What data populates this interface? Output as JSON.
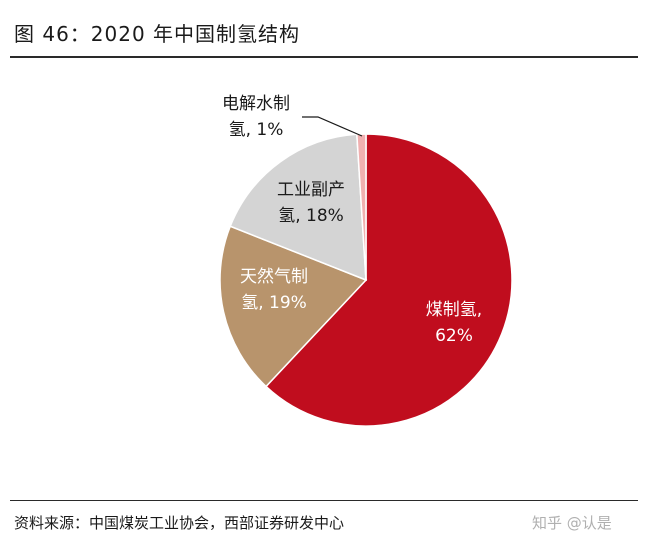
{
  "title": "图 46：2020 年中国制氢结构",
  "source": "资料来源：中国煤炭工业协会，西部证券研发中心",
  "watermark": "知乎 @认是",
  "chart_data": {
    "type": "pie",
    "title": "图 46：2020 年中国制氢结构",
    "slices": [
      {
        "name": "煤制氢",
        "value": 62,
        "label_line1": "煤制氢,",
        "label_line2": "62%",
        "color": "#c00d1e",
        "text_color": "#ffffff"
      },
      {
        "name": "天然气制氢",
        "value": 19,
        "label_line1": "天然气制",
        "label_line2": "氢, 19%",
        "color": "#b8946c",
        "text_color": "#ffffff"
      },
      {
        "name": "工业副产氢",
        "value": 18,
        "label_line1": "工业副产",
        "label_line2": "氢, 18%",
        "color": "#d4d4d4",
        "text_color": "#1a1a1a"
      },
      {
        "name": "电解水制氢",
        "value": 1,
        "label_line1": "电解水制",
        "label_line2": "氢, 1%",
        "color": "#f0b0b0",
        "text_color": "#1a1a1a"
      }
    ]
  }
}
